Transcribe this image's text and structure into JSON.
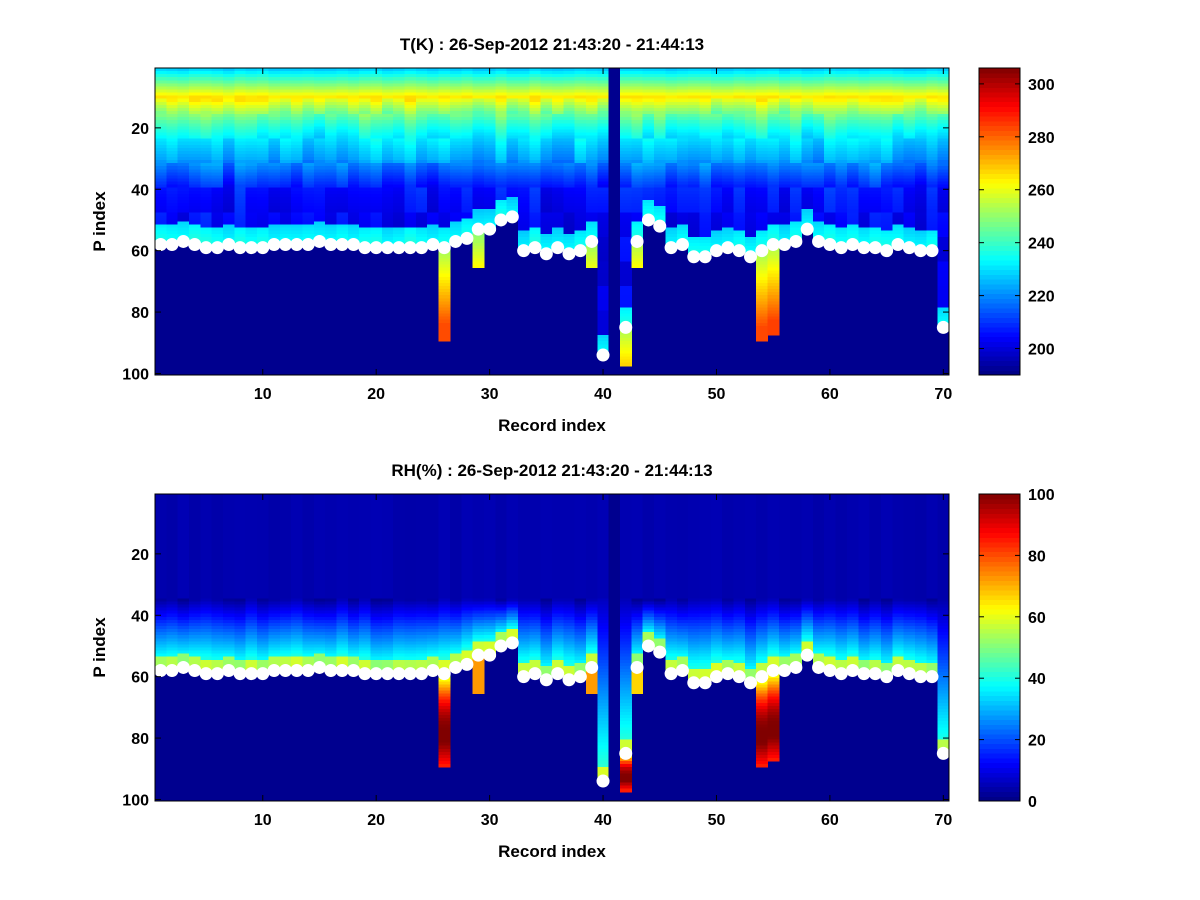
{
  "colors": {
    "background": "#ffffff",
    "marker": "#ffffff",
    "below_ground": "#00008f",
    "colormap": "jet"
  },
  "chart_data": [
    {
      "type": "heatmap",
      "title": "T(K) : 26-Sep-2012 21:43:20 - 21:44:13",
      "xlabel": "Record index",
      "ylabel": "P index",
      "xlim": [
        0.5,
        70.5
      ],
      "ylim": [
        0.5,
        100.5
      ],
      "y_reversed": true,
      "x_ticks": [
        "10",
        "20",
        "30",
        "40",
        "50",
        "60",
        "70"
      ],
      "y_ticks": [
        "20",
        "40",
        "60",
        "80",
        "100"
      ],
      "colorbar": {
        "range": [
          190,
          306
        ],
        "ticks": [
          "200",
          "220",
          "240",
          "260",
          "280",
          "300"
        ]
      },
      "gap_record": 41,
      "profile_model": {
        "tropopause_level": 10,
        "tropopause_value": 265,
        "top_value": 228,
        "tropopause_width": 4,
        "upper_value": 210,
        "upper_decay": 14,
        "surface_layer_top_value": 230,
        "surface_value": 282
      },
      "surface_levels": [
        58,
        58,
        57,
        58,
        59,
        59,
        58,
        59,
        59,
        59,
        58,
        58,
        58,
        58,
        57,
        58,
        58,
        58,
        59,
        59,
        59,
        59,
        59,
        59,
        58,
        59,
        57,
        56,
        53,
        53,
        50,
        49,
        60,
        59,
        61,
        59,
        61,
        60,
        57,
        94,
        0,
        85,
        57,
        50,
        52,
        59,
        58,
        62,
        62,
        60,
        59,
        60,
        62,
        60,
        58,
        58,
        57,
        53,
        57,
        58,
        59,
        58,
        59,
        59,
        60,
        58,
        59,
        60,
        60,
        85
      ],
      "data_bottom": [
        58,
        58,
        57,
        58,
        59,
        59,
        58,
        59,
        59,
        59,
        58,
        58,
        58,
        58,
        57,
        58,
        58,
        58,
        59,
        59,
        59,
        59,
        59,
        59,
        58,
        89,
        57,
        56,
        65,
        53,
        50,
        49,
        60,
        59,
        61,
        59,
        61,
        60,
        65,
        94,
        0,
        97,
        65,
        50,
        52,
        59,
        58,
        62,
        62,
        60,
        59,
        60,
        62,
        89,
        87,
        58,
        57,
        53,
        57,
        58,
        59,
        58,
        59,
        59,
        60,
        58,
        59,
        60,
        60,
        85
      ]
    },
    {
      "type": "heatmap",
      "title": "RH(%) : 26-Sep-2012 21:43:20 - 21:44:13",
      "xlabel": "Record index",
      "ylabel": "P index",
      "xlim": [
        0.5,
        70.5
      ],
      "ylim": [
        0.5,
        100.5
      ],
      "y_reversed": true,
      "x_ticks": [
        "10",
        "20",
        "30",
        "40",
        "50",
        "60",
        "70"
      ],
      "y_ticks": [
        "20",
        "40",
        "60",
        "80",
        "100"
      ],
      "colorbar": {
        "range": [
          0,
          100
        ],
        "ticks": [
          "0",
          "20",
          "40",
          "60",
          "80",
          "100"
        ]
      },
      "gap_record": 41,
      "profile_model": {
        "dry_value": 4,
        "moist_start_level": 35,
        "moist_layer_value": 25,
        "near_surface_value": 55,
        "below_surface_value": 70,
        "deep_moist_records": [
          26,
          40,
          42,
          54,
          55
        ],
        "deep_moist_value": 95
      },
      "surface_levels": [
        58,
        58,
        57,
        58,
        59,
        59,
        58,
        59,
        59,
        59,
        58,
        58,
        58,
        58,
        57,
        58,
        58,
        58,
        59,
        59,
        59,
        59,
        59,
        59,
        58,
        59,
        57,
        56,
        53,
        53,
        50,
        49,
        60,
        59,
        61,
        59,
        61,
        60,
        57,
        94,
        0,
        85,
        57,
        50,
        52,
        59,
        58,
        62,
        62,
        60,
        59,
        60,
        62,
        60,
        58,
        58,
        57,
        53,
        57,
        58,
        59,
        58,
        59,
        59,
        60,
        58,
        59,
        60,
        60,
        85
      ],
      "data_bottom": [
        58,
        58,
        57,
        58,
        59,
        59,
        58,
        59,
        59,
        59,
        58,
        58,
        58,
        58,
        57,
        58,
        58,
        58,
        59,
        59,
        59,
        59,
        59,
        59,
        58,
        89,
        57,
        56,
        65,
        53,
        50,
        49,
        60,
        59,
        61,
        59,
        61,
        60,
        65,
        94,
        0,
        97,
        65,
        50,
        52,
        59,
        58,
        62,
        62,
        60,
        59,
        60,
        62,
        89,
        87,
        58,
        57,
        53,
        57,
        58,
        59,
        58,
        59,
        59,
        60,
        58,
        59,
        60,
        60,
        85
      ]
    }
  ]
}
